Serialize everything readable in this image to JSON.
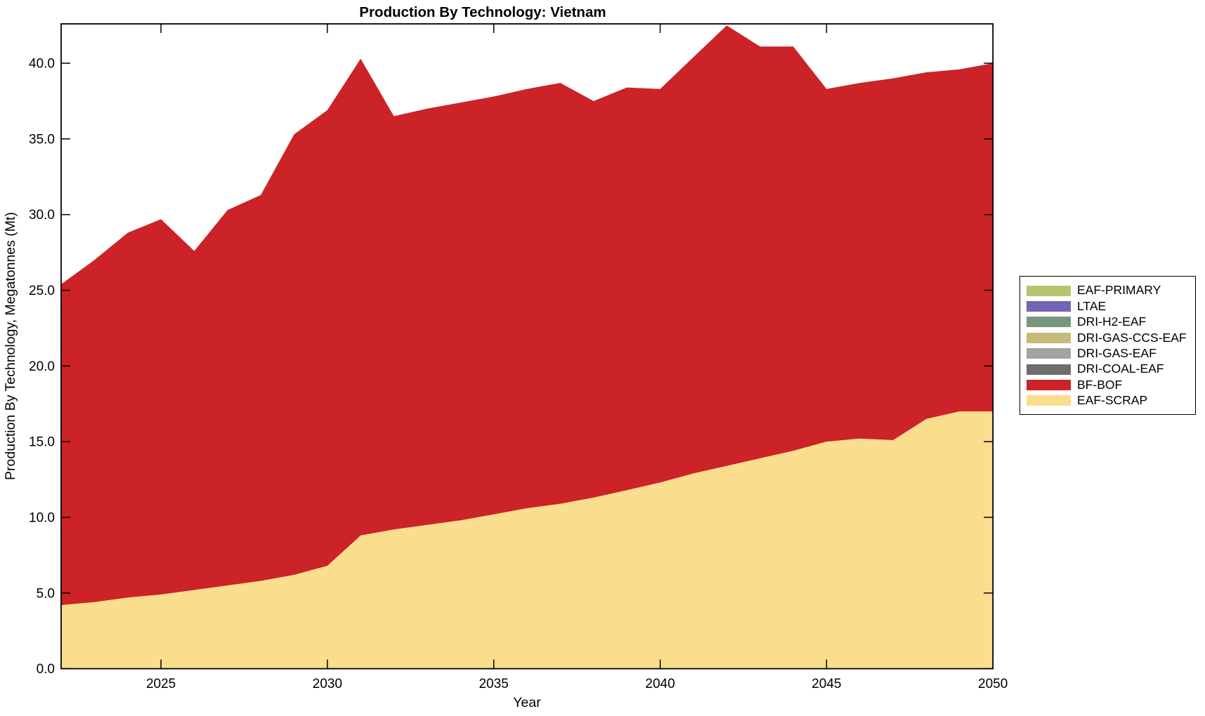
{
  "title": "Production By Technology: Vietnam",
  "axes": {
    "xlabel": "Year",
    "ylabel": "Production By Technology, Megatonnes (Mt)",
    "xlim": [
      2022,
      2050
    ],
    "ylim": [
      0,
      42.6
    ],
    "xticks": {
      "values": [
        2025,
        2030,
        2035,
        2040,
        2045,
        2050
      ],
      "labels": [
        "2025",
        "2030",
        "2035",
        "2040",
        "2045",
        "2050"
      ]
    },
    "yticks": {
      "values": [
        0,
        5,
        10,
        15,
        20,
        25,
        30,
        35,
        40
      ],
      "labels": [
        "0.0",
        "5.0",
        "10.0",
        "15.0",
        "20.0",
        "25.0",
        "30.0",
        "35.0",
        "40.0"
      ]
    }
  },
  "chart_data": {
    "type": "area",
    "stacked": true,
    "grid": false,
    "legend_position": "right-outside",
    "x": [
      2022,
      2023,
      2024,
      2025,
      2026,
      2027,
      2028,
      2029,
      2030,
      2031,
      2032,
      2033,
      2034,
      2035,
      2036,
      2037,
      2038,
      2039,
      2040,
      2041,
      2042,
      2043,
      2044,
      2045,
      2046,
      2047,
      2048,
      2049,
      2050
    ],
    "series": [
      {
        "name": "EAF-SCRAP",
        "color": "#fbde8d",
        "values": [
          4.2,
          4.4,
          4.7,
          4.9,
          5.2,
          5.5,
          5.8,
          6.2,
          6.8,
          8.8,
          9.2,
          9.5,
          9.8,
          10.2,
          10.6,
          10.9,
          11.3,
          11.8,
          12.3,
          12.9,
          13.4,
          13.9,
          14.4,
          15.0,
          15.2,
          15.1,
          16.5,
          17.0,
          17.0
        ]
      },
      {
        "name": "BF-BOF",
        "color": "#cb2327",
        "values": [
          21.2,
          22.6,
          24.1,
          24.8,
          22.4,
          24.8,
          25.5,
          29.1,
          30.1,
          31.5,
          27.3,
          27.5,
          27.6,
          27.6,
          27.7,
          27.8,
          26.2,
          26.6,
          26.0,
          27.5,
          29.1,
          27.2,
          26.7,
          23.3,
          23.5,
          23.9,
          22.9,
          22.6,
          23.0
        ]
      },
      {
        "name": "DRI-COAL-EAF",
        "color": "#6e6e6e",
        "values": [
          0,
          0,
          0,
          0,
          0,
          0,
          0,
          0,
          0,
          0,
          0,
          0,
          0,
          0,
          0,
          0,
          0,
          0,
          0,
          0,
          0,
          0,
          0,
          0,
          0,
          0,
          0,
          0,
          0
        ]
      },
      {
        "name": "DRI-GAS-EAF",
        "color": "#a3a3a1",
        "values": [
          0,
          0,
          0,
          0,
          0,
          0,
          0,
          0,
          0,
          0,
          0,
          0,
          0,
          0,
          0,
          0,
          0,
          0,
          0,
          0,
          0,
          0,
          0,
          0,
          0,
          0,
          0,
          0,
          0
        ]
      },
      {
        "name": "DRI-GAS-CCS-EAF",
        "color": "#c7bb7c",
        "values": [
          0,
          0,
          0,
          0,
          0,
          0,
          0,
          0,
          0,
          0,
          0,
          0,
          0,
          0,
          0,
          0,
          0,
          0,
          0,
          0,
          0,
          0,
          0,
          0,
          0,
          0,
          0,
          0,
          0
        ]
      },
      {
        "name": "DRI-H2-EAF",
        "color": "#77977f",
        "values": [
          0,
          0,
          0,
          0,
          0,
          0,
          0,
          0,
          0,
          0,
          0,
          0,
          0,
          0,
          0,
          0,
          0,
          0,
          0,
          0,
          0,
          0,
          0,
          0,
          0,
          0,
          0,
          0,
          0
        ]
      },
      {
        "name": "LTAE",
        "color": "#7264b4",
        "values": [
          0,
          0,
          0,
          0,
          0,
          0,
          0,
          0,
          0,
          0,
          0,
          0,
          0,
          0,
          0,
          0,
          0,
          0,
          0,
          0,
          0,
          0,
          0,
          0,
          0,
          0,
          0,
          0,
          0
        ]
      },
      {
        "name": "EAF-PRIMARY",
        "color": "#b9c46f",
        "values": [
          0,
          0,
          0,
          0,
          0,
          0,
          0,
          0,
          0,
          0,
          0,
          0,
          0,
          0,
          0,
          0,
          0,
          0,
          0,
          0,
          0,
          0,
          0,
          0,
          0,
          0,
          0,
          0,
          0
        ]
      }
    ],
    "legend_entries": [
      "EAF-PRIMARY",
      "LTAE",
      "DRI-H2-EAF",
      "DRI-GAS-CCS-EAF",
      "DRI-GAS-EAF",
      "DRI-COAL-EAF",
      "BF-BOF",
      "EAF-SCRAP"
    ]
  }
}
